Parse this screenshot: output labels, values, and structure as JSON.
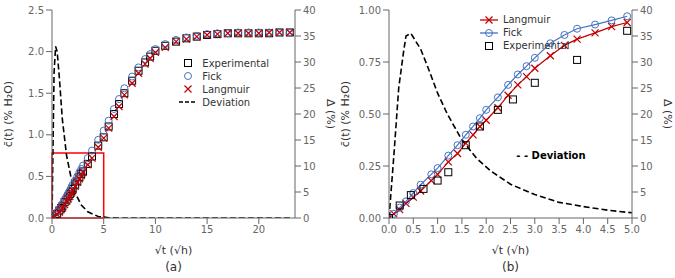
{
  "chart_data": [
    {
      "type": "scatter",
      "title": "(a)",
      "xlabel": "√t (√h)",
      "ylabel": "c̄(t) (% H₂O)",
      "y2label": "Δ (%)",
      "xlim": [
        0,
        23.5
      ],
      "xticks": [
        0,
        5,
        10,
        15,
        20
      ],
      "ylim": [
        0,
        2.5
      ],
      "yticks": [
        {
          "value": 0,
          "label": "0.0"
        },
        0.5,
        {
          "value": 1,
          "label": "1.0"
        },
        1.5,
        {
          "value": 2,
          "label": "2.0"
        },
        2.5
      ],
      "y2lim": [
        0,
        40
      ],
      "y2ticks": [
        0,
        5,
        10,
        15,
        20,
        25,
        30,
        35,
        40
      ],
      "grid": false,
      "legend": "center right",
      "rect": {
        "x0": 0,
        "x1": 5,
        "y0": 0,
        "y1": 0.78,
        "color": "#ff0000"
      },
      "series": [
        {
          "name": "Experimental",
          "type": "scatter",
          "marker": "square",
          "color": "#000000",
          "x": [
            0.0,
            0.5,
            0.71,
            0.87,
            1.0,
            1.22,
            1.41,
            1.58,
            1.73,
            1.87,
            2.0,
            2.24,
            2.45,
            2.65,
            2.83,
            3.0,
            3.46,
            3.87,
            4.47,
            5.0,
            5.48,
            6.0,
            6.48,
            7.0,
            7.75,
            8.37,
            9.0,
            9.49,
            10.0,
            10.95,
            12.0,
            13.0,
            14.0,
            15.0,
            16.0,
            17.0,
            18.0,
            19.0,
            20.0,
            21.0,
            22.0,
            23.0
          ],
          "values": [
            0.0,
            0.05,
            0.09,
            0.12,
            0.14,
            0.19,
            0.22,
            0.26,
            0.29,
            0.32,
            0.35,
            0.4,
            0.44,
            0.49,
            0.53,
            0.56,
            0.65,
            0.74,
            0.87,
            0.97,
            1.1,
            1.25,
            1.37,
            1.5,
            1.65,
            1.77,
            1.87,
            1.94,
            2.01,
            2.07,
            2.12,
            2.16,
            2.18,
            2.2,
            2.21,
            2.22,
            2.22,
            2.22,
            2.22,
            2.22,
            2.23,
            2.23
          ]
        },
        {
          "name": "Fick",
          "type": "scatter",
          "marker": "circle",
          "color": "#4472c4",
          "x": [
            0.0,
            0.5,
            0.71,
            0.87,
            1.0,
            1.22,
            1.41,
            1.58,
            1.73,
            1.87,
            2.0,
            2.24,
            2.45,
            2.65,
            2.83,
            3.0,
            3.46,
            3.87,
            4.47,
            5.0,
            5.48,
            6.0,
            6.48,
            7.0,
            7.75,
            8.37,
            9.0,
            9.49,
            10.0,
            10.95,
            12.0,
            13.0,
            14.0,
            15.0,
            16.0,
            17.0,
            18.0,
            19.0,
            20.0,
            21.0,
            22.0,
            23.0
          ],
          "values": [
            0.0,
            0.07,
            0.11,
            0.14,
            0.17,
            0.22,
            0.26,
            0.3,
            0.33,
            0.37,
            0.4,
            0.45,
            0.5,
            0.55,
            0.59,
            0.63,
            0.72,
            0.81,
            0.94,
            1.05,
            1.17,
            1.31,
            1.43,
            1.56,
            1.7,
            1.81,
            1.91,
            1.97,
            2.03,
            2.09,
            2.14,
            2.17,
            2.19,
            2.21,
            2.22,
            2.22,
            2.23,
            2.23,
            2.23,
            2.23,
            2.23,
            2.23
          ]
        },
        {
          "name": "Langmuir",
          "type": "scatter",
          "marker": "x",
          "color": "#c00000",
          "x": [
            0.0,
            0.5,
            0.71,
            0.87,
            1.0,
            1.22,
            1.41,
            1.58,
            1.73,
            1.87,
            2.0,
            2.24,
            2.45,
            2.65,
            2.83,
            3.0,
            3.46,
            3.87,
            4.47,
            5.0,
            5.48,
            6.0,
            6.48,
            7.0,
            7.75,
            8.37,
            9.0,
            9.49,
            10.0,
            10.95,
            12.0,
            13.0,
            14.0,
            15.0,
            16.0,
            17.0,
            18.0,
            19.0,
            20.0,
            21.0,
            22.0,
            23.0
          ],
          "values": [
            0.0,
            0.04,
            0.07,
            0.1,
            0.12,
            0.16,
            0.2,
            0.23,
            0.26,
            0.3,
            0.33,
            0.38,
            0.43,
            0.47,
            0.51,
            0.55,
            0.64,
            0.72,
            0.85,
            0.96,
            1.08,
            1.22,
            1.34,
            1.48,
            1.62,
            1.74,
            1.85,
            1.92,
            1.99,
            2.05,
            2.12,
            2.15,
            2.18,
            2.2,
            2.21,
            2.22,
            2.22,
            2.22,
            2.22,
            2.23,
            2.23,
            2.23
          ]
        },
        {
          "name": "Deviation",
          "type": "line",
          "line_style": "dashed",
          "color": "#000000",
          "axis": "y2",
          "x": [
            0.0,
            0.2,
            0.35,
            0.5,
            0.71,
            1.0,
            1.41,
            1.87,
            2.24,
            2.83,
            3.46,
            4.47,
            5.5,
            6.5,
            8.0,
            10.0,
            13.0,
            16.0,
            20.0,
            23.0
          ],
          "values": [
            0.0,
            28.0,
            33.0,
            32.0,
            27.0,
            19.0,
            12.0,
            7.5,
            4.8,
            2.5,
            1.2,
            0.3,
            0.05,
            0.01,
            0.0,
            0.0,
            0.0,
            0.0,
            0.0,
            0.0
          ]
        }
      ]
    },
    {
      "type": "scatter",
      "title": "(b)",
      "xlabel": "√t (√h)",
      "ylabel": "c̄(t) (% H₂O)",
      "y2label": "Δ (%)",
      "xlim": [
        0,
        5.0
      ],
      "xticks": [
        {
          "value": 0,
          "label": "0.0"
        },
        0.5,
        {
          "value": 1,
          "label": "1.0"
        },
        1.5,
        {
          "value": 2,
          "label": "2.0"
        },
        2.5,
        {
          "value": 3,
          "label": "3.0"
        },
        3.5,
        {
          "value": 4,
          "label": "4.0"
        },
        4.5,
        {
          "value": 5,
          "label": "5.0"
        }
      ],
      "ylim": [
        0,
        1.0
      ],
      "yticks": [
        {
          "value": 0,
          "label": "0.00"
        },
        {
          "value": 0.25,
          "label": "0.25"
        },
        {
          "value": 0.5,
          "label": "0.50"
        },
        {
          "value": 0.75,
          "label": "0.75"
        },
        {
          "value": 1,
          "label": "1.00"
        }
      ],
      "y2lim": [
        0,
        40
      ],
      "y2ticks": [
        0,
        5,
        10,
        15,
        20,
        25,
        30,
        35,
        40
      ],
      "grid": false,
      "legend": "upper center",
      "annotations": [
        {
          "text": "- - Deviation",
          "x": 2.6,
          "y": 0.3
        }
      ],
      "series": [
        {
          "name": "Langmuir",
          "type": "line",
          "line_style": "solid",
          "marker": "x",
          "color": "#c00000",
          "x": [
            0.0,
            0.1,
            0.22,
            0.35,
            0.5,
            0.65,
            0.87,
            1.0,
            1.22,
            1.41,
            1.58,
            1.73,
            1.87,
            2.0,
            2.24,
            2.45,
            2.65,
            2.83,
            3.0,
            3.32,
            3.61,
            3.87,
            4.24,
            4.58,
            4.9
          ],
          "values": [
            0.0,
            0.02,
            0.04,
            0.07,
            0.1,
            0.13,
            0.18,
            0.21,
            0.27,
            0.31,
            0.36,
            0.4,
            0.44,
            0.47,
            0.53,
            0.59,
            0.64,
            0.68,
            0.72,
            0.78,
            0.83,
            0.86,
            0.89,
            0.92,
            0.94
          ]
        },
        {
          "name": "Fick",
          "type": "line",
          "line_style": "solid",
          "marker": "circle",
          "color": "#4472c4",
          "x": [
            0.0,
            0.1,
            0.22,
            0.35,
            0.5,
            0.65,
            0.87,
            1.0,
            1.22,
            1.41,
            1.58,
            1.73,
            1.87,
            2.0,
            2.24,
            2.45,
            2.65,
            2.83,
            3.0,
            3.32,
            3.61,
            3.87,
            4.24,
            4.58,
            4.9
          ],
          "values": [
            0.0,
            0.02,
            0.05,
            0.08,
            0.12,
            0.16,
            0.21,
            0.24,
            0.3,
            0.35,
            0.4,
            0.44,
            0.48,
            0.52,
            0.58,
            0.64,
            0.69,
            0.73,
            0.77,
            0.84,
            0.88,
            0.91,
            0.93,
            0.95,
            0.97
          ]
        },
        {
          "name": "Experimental",
          "type": "scatter",
          "marker": "square",
          "color": "#000000",
          "x": [
            0.0,
            0.22,
            0.45,
            0.71,
            1.0,
            1.22,
            1.58,
            1.87,
            2.24,
            2.55,
            3.0,
            3.87,
            4.9
          ],
          "values": [
            0.0,
            0.06,
            0.11,
            0.14,
            0.18,
            0.22,
            0.35,
            0.44,
            0.52,
            0.57,
            0.65,
            0.76,
            0.9
          ]
        },
        {
          "type": "line",
          "line_style": "dashed",
          "color": "#000000",
          "axis": "y2",
          "x": [
            0.0,
            0.1,
            0.2,
            0.3,
            0.35,
            0.45,
            0.55,
            0.65,
            0.8,
            1.0,
            1.2,
            1.5,
            1.8,
            2.1,
            2.5,
            3.0,
            3.5,
            4.0,
            4.5,
            5.0
          ],
          "values": [
            0.0,
            12.0,
            25.0,
            32.0,
            35.0,
            35.5,
            34.0,
            32.5,
            29.0,
            24.0,
            20.0,
            15.0,
            11.5,
            9.0,
            6.5,
            4.5,
            3.0,
            2.2,
            1.5,
            1.0
          ]
        }
      ]
    }
  ]
}
